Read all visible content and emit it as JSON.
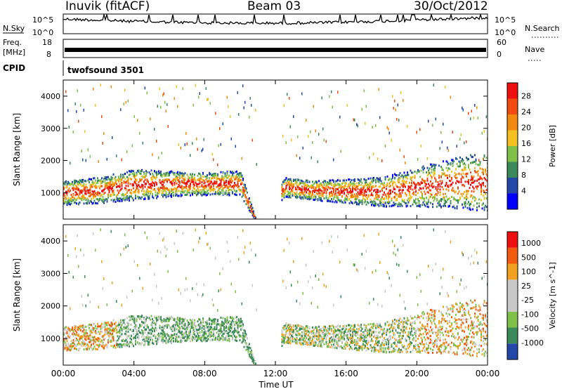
{
  "header": {
    "station": "Inuvik (fitACF)",
    "beam": "Beam 03",
    "date": "30/Oct/2012"
  },
  "strip_nsky": {
    "left_label": "N.Sky",
    "right_label": "N.Search",
    "ticks": [
      "10^5",
      "10^0"
    ]
  },
  "strip_freq": {
    "left_label_1": "Freq.",
    "left_label_2": "[MHz]",
    "left_ticks": [
      "18",
      "8"
    ],
    "right_label": "Nave",
    "right_ticks": [
      "60",
      "0"
    ]
  },
  "strip_cpid": {
    "left_label": "CPID",
    "program": "twofsound 3501"
  },
  "colors": {
    "power": [
      "#0000ff",
      "#2448a8",
      "#3a8a5a",
      "#7ec04a",
      "#f2c020",
      "#f28a10",
      "#f24a10",
      "#ee1010"
    ],
    "velocity": [
      "#ee1010",
      "#f25a10",
      "#f2a020",
      "#c8c8c8",
      "#c8c8c8",
      "#7ec04a",
      "#3a8a5a",
      "#2448a8"
    ]
  },
  "chart_data": [
    {
      "type": "heatmap",
      "name": "power",
      "ylabel": "Slant Range [km]",
      "ylim": [
        180,
        4500
      ],
      "yticks": [
        1000,
        2000,
        3000,
        4000
      ],
      "xlabel": "Time UT",
      "xticks": [
        "00:00",
        "04:00",
        "08:00",
        "12:00",
        "16:00",
        "20:00",
        "00:00"
      ],
      "colorbar": {
        "label": "Power [dB]",
        "range": [
          0,
          32
        ],
        "ticks": [
          "4",
          "8",
          "12",
          "16",
          "20",
          "24",
          "28"
        ]
      },
      "scatter_band_km": [
        {
          "hour": 0,
          "low": 650,
          "high": 1400
        },
        {
          "hour": 2,
          "low": 700,
          "high": 1500
        },
        {
          "hour": 4,
          "low": 800,
          "high": 1750
        },
        {
          "hour": 6,
          "low": 900,
          "high": 1700
        },
        {
          "hour": 8,
          "low": 950,
          "high": 1650
        },
        {
          "hour": 10,
          "low": 950,
          "high": 1700
        },
        {
          "hour": 11,
          "low": 0,
          "high": 0
        },
        {
          "hour": 12.5,
          "low": 900,
          "high": 1500
        },
        {
          "hour": 14,
          "low": 800,
          "high": 1400
        },
        {
          "hour": 16,
          "low": 700,
          "high": 1450
        },
        {
          "hour": 18,
          "low": 600,
          "high": 1500
        },
        {
          "hour": 20,
          "low": 600,
          "high": 1800
        },
        {
          "hour": 22,
          "low": 550,
          "high": 2100
        },
        {
          "hour": 24,
          "low": 450,
          "high": 2300
        }
      ]
    },
    {
      "type": "heatmap",
      "name": "velocity",
      "ylabel": "Slant Range [km]",
      "ylim": [
        180,
        4500
      ],
      "yticks": [
        1000,
        2000,
        3000,
        4000
      ],
      "xlabel": "Time UT",
      "xticks": [
        "00:00",
        "04:00",
        "08:00",
        "12:00",
        "16:00",
        "20:00",
        "00:00"
      ],
      "colorbar": {
        "label": "Velocity [m s^-1]",
        "ticks": [
          "1000",
          "500",
          "100",
          "25",
          "-25",
          "-100",
          "-500",
          "-1000"
        ]
      }
    }
  ]
}
